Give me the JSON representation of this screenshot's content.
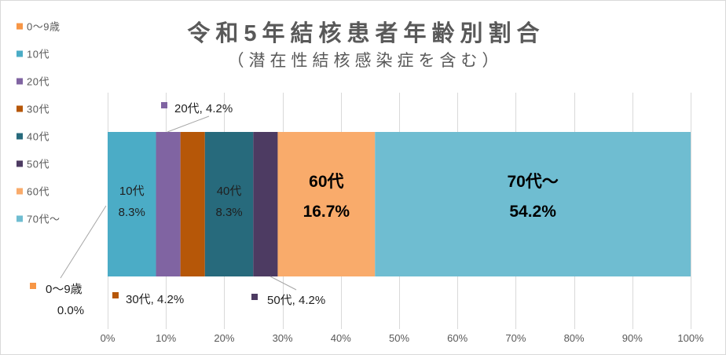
{
  "chart_data": {
    "type": "bar",
    "orientation": "horizontal",
    "stacked": "percent",
    "title": "令和5年結核患者年齢別割合",
    "subtitle": "（潜在性結核感染症を含む）",
    "xlim": [
      0,
      100
    ],
    "x_ticks": [
      0,
      10,
      20,
      30,
      40,
      50,
      60,
      70,
      80,
      90,
      100
    ],
    "x_tick_labels": [
      "0%",
      "10%",
      "20%",
      "30%",
      "40%",
      "50%",
      "60%",
      "70%",
      "80%",
      "90%",
      "100%"
    ],
    "grid": true,
    "legend": "left",
    "series": [
      {
        "name": "0～9歳",
        "values": [
          0.0
        ],
        "color": "#F79646",
        "data_label": [
          "0～9歳",
          "0.0%"
        ]
      },
      {
        "name": "10代",
        "values": [
          8.3
        ],
        "color": "#4BACC6",
        "data_label": [
          "10代",
          "8.3%"
        ]
      },
      {
        "name": "20代",
        "values": [
          4.2
        ],
        "color": "#8064A2",
        "data_label": [
          "20代, 4.2%"
        ]
      },
      {
        "name": "30代",
        "values": [
          4.2
        ],
        "color": "#B65708",
        "data_label": [
          "30代, 4.2%"
        ]
      },
      {
        "name": "40代",
        "values": [
          8.3
        ],
        "color": "#276A7C",
        "data_label": [
          "40代",
          "8.3%"
        ]
      },
      {
        "name": "50代",
        "values": [
          4.2
        ],
        "color": "#4D3B62",
        "data_label": [
          "50代, 4.2%"
        ]
      },
      {
        "name": "60代",
        "values": [
          16.7
        ],
        "color": "#F9AB6B",
        "data_label": [
          "60代",
          "16.7%"
        ]
      },
      {
        "name": "70代～",
        "values": [
          54.2
        ],
        "color": "#6FBDD1",
        "data_label": [
          "70代～",
          "54.2%"
        ]
      }
    ]
  }
}
